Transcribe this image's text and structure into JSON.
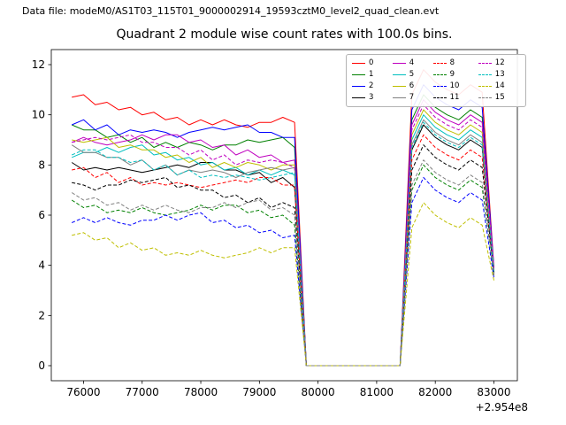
{
  "header": {
    "data_file_label": "Data file: modeM0/AS1T03_115T01_9000002914_19593cztM0_level2_quad_clean.evt"
  },
  "chart_data": {
    "type": "line",
    "title": "Quadrant 2 module wise count rates with 100.0s bins.",
    "xlabel": "",
    "ylabel": "",
    "x_offset_text": "+2.954e8",
    "xlim": [
      75450,
      83400
    ],
    "ylim": [
      -0.6,
      12.6
    ],
    "xticks": [
      76000,
      77000,
      78000,
      79000,
      80000,
      81000,
      82000,
      83000
    ],
    "yticks": [
      0,
      2,
      4,
      6,
      8,
      10,
      12
    ],
    "grid": false,
    "legend": {
      "position": "upper right",
      "ncol": 4
    },
    "x": [
      75800,
      76000,
      76200,
      76400,
      76600,
      76800,
      77000,
      77200,
      77400,
      77600,
      77800,
      78000,
      78200,
      78400,
      78600,
      78800,
      79000,
      79200,
      79400,
      79600,
      79800,
      80000,
      80200,
      80400,
      80600,
      80800,
      81000,
      81200,
      81400,
      81600,
      81800,
      82000,
      82200,
      82400,
      82600,
      82800,
      83000
    ],
    "series": [
      {
        "name": "0",
        "color": "#ff0000",
        "dashed": false,
        "values": [
          10.7,
          10.8,
          10.4,
          10.5,
          10.2,
          10.3,
          10.0,
          10.1,
          9.8,
          9.9,
          9.6,
          9.8,
          9.6,
          9.8,
          9.6,
          9.5,
          9.7,
          9.7,
          9.9,
          9.7,
          0.0,
          0.0,
          0.0,
          0.0,
          0.0,
          0.0,
          0.0,
          0.0,
          0.0,
          10.8,
          11.8,
          11.3,
          11.0,
          10.8,
          11.2,
          10.9,
          3.9
        ]
      },
      {
        "name": "1",
        "color": "#008000",
        "dashed": false,
        "values": [
          9.6,
          9.4,
          9.4,
          9.1,
          9.2,
          8.9,
          9.1,
          8.7,
          8.9,
          8.7,
          8.9,
          8.8,
          8.6,
          8.8,
          8.8,
          9.0,
          8.9,
          9.0,
          9.1,
          8.7,
          0.0,
          0.0,
          0.0,
          0.0,
          0.0,
          0.0,
          0.0,
          0.0,
          0.0,
          9.8,
          10.8,
          10.3,
          10.0,
          9.8,
          10.2,
          9.9,
          3.8
        ]
      },
      {
        "name": "2",
        "color": "#0000ff",
        "dashed": false,
        "values": [
          9.6,
          9.8,
          9.4,
          9.6,
          9.2,
          9.4,
          9.3,
          9.4,
          9.3,
          9.1,
          9.3,
          9.4,
          9.5,
          9.4,
          9.5,
          9.6,
          9.3,
          9.3,
          9.1,
          9.1,
          0.0,
          0.0,
          0.0,
          0.0,
          0.0,
          0.0,
          0.0,
          0.0,
          0.0,
          10.2,
          11.2,
          10.7,
          10.4,
          10.2,
          10.6,
          10.3,
          3.9
        ]
      },
      {
        "name": "3",
        "color": "#000000",
        "dashed": false,
        "values": [
          8.1,
          7.8,
          7.9,
          7.8,
          7.9,
          7.8,
          7.7,
          7.8,
          7.9,
          8.0,
          7.9,
          8.1,
          8.1,
          7.8,
          7.8,
          7.6,
          7.7,
          7.3,
          7.5,
          7.1,
          0.0,
          0.0,
          0.0,
          0.0,
          0.0,
          0.0,
          0.0,
          0.0,
          0.0,
          8.6,
          9.6,
          9.1,
          8.8,
          8.6,
          9.0,
          8.7,
          3.7
        ]
      },
      {
        "name": "4",
        "color": "#bf00bf",
        "dashed": false,
        "values": [
          8.9,
          9.1,
          8.9,
          8.8,
          8.9,
          9.0,
          9.2,
          9.0,
          9.2,
          9.2,
          8.9,
          9.0,
          8.7,
          8.8,
          8.4,
          8.6,
          8.3,
          8.4,
          8.1,
          8.2,
          0.0,
          0.0,
          0.0,
          0.0,
          0.0,
          0.0,
          0.0,
          0.0,
          0.0,
          9.6,
          10.6,
          10.1,
          9.8,
          9.6,
          10.0,
          9.7,
          3.8
        ]
      },
      {
        "name": "5",
        "color": "#00bfbf",
        "dashed": false,
        "values": [
          8.3,
          8.5,
          8.5,
          8.7,
          8.5,
          8.7,
          8.8,
          8.4,
          8.5,
          8.2,
          8.3,
          8.0,
          8.1,
          7.8,
          7.9,
          7.6,
          7.8,
          7.6,
          7.8,
          7.6,
          0.0,
          0.0,
          0.0,
          0.0,
          0.0,
          0.0,
          0.0,
          0.0,
          0.0,
          9.0,
          10.0,
          9.5,
          9.2,
          9.0,
          9.4,
          9.1,
          3.7
        ]
      },
      {
        "name": "6",
        "color": "#bfbf00",
        "dashed": false,
        "values": [
          9.0,
          8.9,
          9.0,
          9.1,
          8.7,
          8.8,
          8.6,
          8.6,
          8.3,
          8.4,
          8.1,
          8.3,
          7.9,
          8.1,
          7.9,
          8.1,
          8.0,
          7.8,
          8.0,
          8.0,
          0.0,
          0.0,
          0.0,
          0.0,
          0.0,
          0.0,
          0.0,
          0.0,
          0.0,
          9.2,
          10.2,
          9.7,
          9.4,
          9.2,
          9.6,
          9.3,
          3.8
        ]
      },
      {
        "name": "7",
        "color": "#808080",
        "dashed": false,
        "values": [
          8.8,
          8.5,
          8.5,
          8.3,
          8.3,
          8.0,
          8.2,
          7.8,
          8.0,
          7.6,
          7.8,
          7.7,
          7.8,
          7.7,
          7.5,
          7.7,
          7.8,
          7.9,
          7.8,
          7.9,
          0.0,
          0.0,
          0.0,
          0.0,
          0.0,
          0.0,
          0.0,
          0.0,
          0.0,
          8.8,
          9.8,
          9.3,
          9.0,
          8.8,
          9.2,
          8.9,
          3.7
        ]
      },
      {
        "name": "8",
        "color": "#ff0000",
        "dashed": true,
        "values": [
          7.8,
          7.9,
          7.5,
          7.7,
          7.3,
          7.5,
          7.2,
          7.3,
          7.2,
          7.3,
          7.2,
          7.1,
          7.2,
          7.3,
          7.4,
          7.3,
          7.5,
          7.5,
          7.2,
          7.2,
          0.0,
          0.0,
          0.0,
          0.0,
          0.0,
          0.0,
          0.0,
          0.0,
          0.0,
          8.2,
          9.2,
          8.7,
          8.4,
          8.2,
          8.6,
          8.3,
          3.6
        ]
      },
      {
        "name": "9",
        "color": "#008000",
        "dashed": true,
        "values": [
          6.6,
          6.3,
          6.4,
          6.1,
          6.2,
          6.1,
          6.3,
          6.1,
          6.0,
          6.1,
          6.2,
          6.4,
          6.2,
          6.4,
          6.4,
          6.1,
          6.2,
          5.9,
          6.0,
          5.6,
          0.0,
          0.0,
          0.0,
          0.0,
          0.0,
          0.0,
          0.0,
          0.0,
          0.0,
          7.0,
          8.0,
          7.5,
          7.2,
          7.0,
          7.4,
          7.1,
          3.6
        ]
      },
      {
        "name": "10",
        "color": "#0000ff",
        "dashed": true,
        "values": [
          5.7,
          5.9,
          5.7,
          5.9,
          5.7,
          5.6,
          5.8,
          5.8,
          6.0,
          5.8,
          6.0,
          6.1,
          5.7,
          5.8,
          5.5,
          5.6,
          5.3,
          5.4,
          5.1,
          5.2,
          0.0,
          0.0,
          0.0,
          0.0,
          0.0,
          0.0,
          0.0,
          0.0,
          0.0,
          6.5,
          7.5,
          7.0,
          6.7,
          6.5,
          6.9,
          6.6,
          3.5
        ]
      },
      {
        "name": "11",
        "color": "#000000",
        "dashed": true,
        "values": [
          7.3,
          7.2,
          7.0,
          7.2,
          7.2,
          7.4,
          7.3,
          7.4,
          7.5,
          7.1,
          7.2,
          7.0,
          7.0,
          6.7,
          6.8,
          6.5,
          6.7,
          6.3,
          6.5,
          6.3,
          0.0,
          0.0,
          0.0,
          0.0,
          0.0,
          0.0,
          0.0,
          0.0,
          0.0,
          7.8,
          8.8,
          8.3,
          8.0,
          7.8,
          8.2,
          7.9,
          3.7
        ]
      },
      {
        "name": "12",
        "color": "#bf00bf",
        "dashed": true,
        "values": [
          8.9,
          9.0,
          9.1,
          9.0,
          9.1,
          9.2,
          8.9,
          8.9,
          8.7,
          8.7,
          8.4,
          8.6,
          8.2,
          8.4,
          8.0,
          8.2,
          8.1,
          8.2,
          8.1,
          7.9,
          0.0,
          0.0,
          0.0,
          0.0,
          0.0,
          0.0,
          0.0,
          0.0,
          0.0,
          9.4,
          10.4,
          9.9,
          9.6,
          9.4,
          9.8,
          9.5,
          3.8
        ]
      },
      {
        "name": "13",
        "color": "#00bfbf",
        "dashed": true,
        "values": [
          8.4,
          8.6,
          8.6,
          8.3,
          8.3,
          8.1,
          8.2,
          7.8,
          8.0,
          7.6,
          7.8,
          7.5,
          7.6,
          7.5,
          7.6,
          7.5,
          7.4,
          7.5,
          7.6,
          7.7,
          0.0,
          0.0,
          0.0,
          0.0,
          0.0,
          0.0,
          0.0,
          0.0,
          0.0,
          8.7,
          9.7,
          9.2,
          8.9,
          8.7,
          9.1,
          8.8,
          3.7
        ]
      },
      {
        "name": "14",
        "color": "#bfbf00",
        "dashed": true,
        "values": [
          5.2,
          5.3,
          5.0,
          5.1,
          4.7,
          4.9,
          4.6,
          4.7,
          4.4,
          4.5,
          4.4,
          4.6,
          4.4,
          4.3,
          4.4,
          4.5,
          4.7,
          4.5,
          4.7,
          4.7,
          0.0,
          0.0,
          0.0,
          0.0,
          0.0,
          0.0,
          0.0,
          0.0,
          0.0,
          5.5,
          6.5,
          6.0,
          5.7,
          5.5,
          5.9,
          5.6,
          3.4
        ]
      },
      {
        "name": "15",
        "color": "#808080",
        "dashed": true,
        "values": [
          6.9,
          6.6,
          6.7,
          6.4,
          6.5,
          6.2,
          6.4,
          6.2,
          6.4,
          6.2,
          6.1,
          6.3,
          6.3,
          6.5,
          6.3,
          6.5,
          6.6,
          6.2,
          6.3,
          6.0,
          0.0,
          0.0,
          0.0,
          0.0,
          0.0,
          0.0,
          0.0,
          0.0,
          0.0,
          7.2,
          8.2,
          7.7,
          7.4,
          7.2,
          7.6,
          7.3,
          3.6
        ]
      }
    ]
  }
}
